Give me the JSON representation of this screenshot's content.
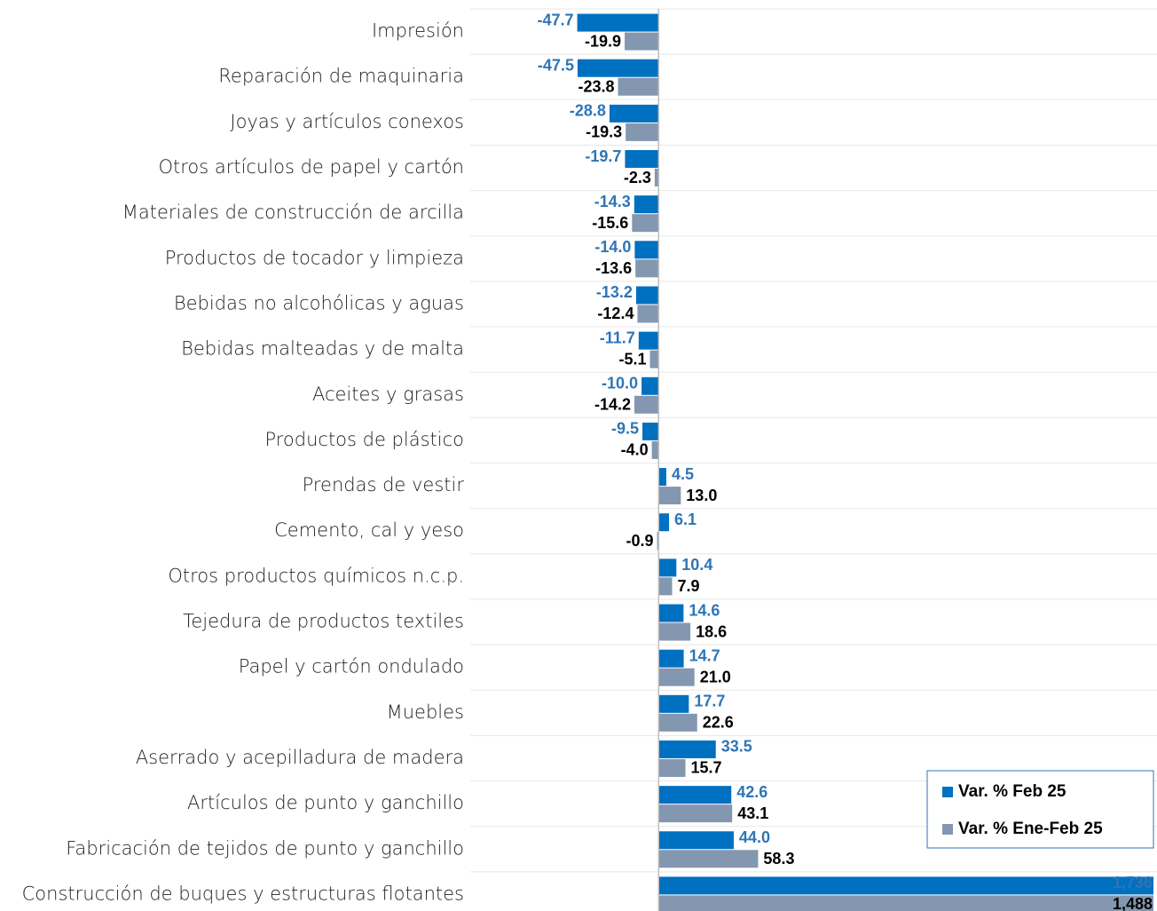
{
  "chart_data": {
    "type": "bar",
    "orientation": "horizontal",
    "categories": [
      "Impresión",
      "Reparación de maquinaria",
      "Joyas y artículos conexos",
      "Otros artículos de papel y cartón",
      "Materiales de construcción de arcilla",
      "Productos de tocador y limpieza",
      "Bebidas no alcohólicas y aguas",
      "Bebidas malteadas y de malta",
      "Aceites y grasas",
      "Productos de plástico",
      "Prendas de vestir",
      "Cemento, cal y yeso",
      "Otros productos químicos n.c.p.",
      "Tejedura de productos textiles",
      "Papel y cartón ondulado",
      "Muebles",
      "Aserrado y acepilladura de madera",
      "Artículos de punto y ganchillo",
      "Fabricación de tejidos de punto y ganchillo",
      "Construcción de buques y estructuras flotantes"
    ],
    "series": [
      {
        "name": "Var. % Feb 25",
        "color": "#0070c0",
        "label_color": "#2e75b6",
        "values": [
          -47.7,
          -47.5,
          -28.8,
          -19.7,
          -14.3,
          -14.0,
          -13.2,
          -11.7,
          -10.0,
          -9.5,
          4.5,
          6.1,
          10.4,
          14.6,
          14.7,
          17.7,
          33.5,
          42.6,
          44.0,
          1736
        ],
        "value_labels": [
          "-47.7",
          "-47.5",
          "-28.8",
          "-19.7",
          "-14.3",
          "-14.0",
          "-13.2",
          "-11.7",
          "-10.0",
          "-9.5",
          "4.5",
          "6.1",
          "10.4",
          "14.6",
          "14.7",
          "17.7",
          "33.5",
          "42.6",
          "44.0",
          "1,736"
        ]
      },
      {
        "name": "Var. % Ene-Feb 25",
        "color": "#8497b0",
        "label_color": "#000000",
        "values": [
          -19.9,
          -23.8,
          -19.3,
          -2.3,
          -15.6,
          -13.6,
          -12.4,
          -5.1,
          -14.2,
          -4.0,
          13.0,
          -0.9,
          7.9,
          18.6,
          21.0,
          22.6,
          15.7,
          43.1,
          58.3,
          1488
        ],
        "value_labels": [
          "-19.9",
          "-23.8",
          "-19.3",
          "-2.3",
          "-15.6",
          "-13.6",
          "-12.4",
          "-5.1",
          "-14.2",
          "-4.0",
          "13.0",
          "-0.9",
          "7.9",
          "18.6",
          "21.0",
          "22.6",
          "15.7",
          "43.1",
          "58.3",
          "1,488"
        ]
      }
    ],
    "xlim": [
      -48,
      290
    ],
    "grid": true,
    "legend": "lower right"
  }
}
